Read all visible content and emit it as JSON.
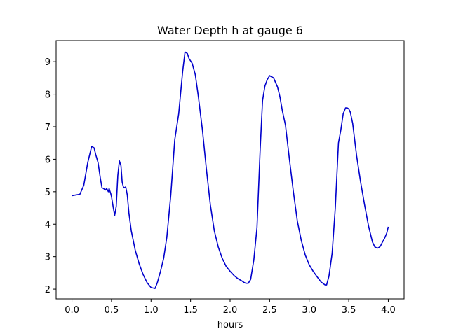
{
  "chart_data": {
    "type": "line",
    "title": "Water Depth h at gauge 6",
    "xlabel": "hours",
    "ylabel": "",
    "xlim": [
      -0.2,
      4.2
    ],
    "ylim": [
      1.7,
      9.65
    ],
    "xticks": [
      0.0,
      0.5,
      1.0,
      1.5,
      2.0,
      2.5,
      3.0,
      3.5,
      4.0
    ],
    "xtick_labels": [
      "0.0",
      "0.5",
      "1.0",
      "1.5",
      "2.0",
      "2.5",
      "3.0",
      "3.5",
      "4.0"
    ],
    "yticks": [
      2,
      3,
      4,
      5,
      6,
      7,
      8,
      9
    ],
    "ytick_labels": [
      "2",
      "3",
      "4",
      "5",
      "6",
      "7",
      "8",
      "9"
    ],
    "grid": false,
    "series": [
      {
        "color": "#0000cc",
        "x": [
          0.0,
          0.05,
          0.1,
          0.15,
          0.2,
          0.25,
          0.28,
          0.3,
          0.33,
          0.36,
          0.38,
          0.4,
          0.42,
          0.44,
          0.46,
          0.47,
          0.48,
          0.49,
          0.5,
          0.52,
          0.54,
          0.56,
          0.58,
          0.6,
          0.62,
          0.635,
          0.65,
          0.66,
          0.68,
          0.7,
          0.72,
          0.75,
          0.8,
          0.85,
          0.9,
          0.95,
          1.0,
          1.05,
          1.08,
          1.12,
          1.16,
          1.2,
          1.25,
          1.3,
          1.35,
          1.4,
          1.43,
          1.46,
          1.48,
          1.52,
          1.56,
          1.6,
          1.65,
          1.7,
          1.75,
          1.8,
          1.85,
          1.9,
          1.95,
          2.0,
          2.05,
          2.1,
          2.15,
          2.18,
          2.2,
          2.23,
          2.26,
          2.3,
          2.34,
          2.38,
          2.41,
          2.44,
          2.47,
          2.5,
          2.55,
          2.6,
          2.63,
          2.66,
          2.7,
          2.75,
          2.8,
          2.85,
          2.9,
          2.95,
          3.0,
          3.05,
          3.1,
          3.15,
          3.2,
          3.22,
          3.25,
          3.29,
          3.33,
          3.37,
          3.4,
          3.43,
          3.46,
          3.48,
          3.5,
          3.52,
          3.55,
          3.6,
          3.65,
          3.7,
          3.75,
          3.8,
          3.83,
          3.86,
          3.88,
          3.9,
          3.92,
          3.95,
          3.98,
          4.0
        ],
        "y": [
          4.88,
          4.9,
          4.92,
          5.2,
          5.9,
          6.4,
          6.35,
          6.15,
          5.9,
          5.4,
          5.12,
          5.1,
          5.05,
          5.1,
          5.0,
          5.1,
          5.02,
          4.95,
          4.85,
          4.55,
          4.27,
          4.55,
          5.5,
          5.95,
          5.8,
          5.3,
          5.15,
          5.12,
          5.15,
          4.9,
          4.35,
          3.8,
          3.2,
          2.78,
          2.45,
          2.2,
          2.05,
          2.02,
          2.2,
          2.55,
          2.95,
          3.6,
          4.9,
          6.6,
          7.4,
          8.7,
          9.3,
          9.25,
          9.1,
          8.95,
          8.6,
          7.9,
          6.9,
          5.7,
          4.6,
          3.8,
          3.3,
          2.95,
          2.7,
          2.55,
          2.42,
          2.32,
          2.25,
          2.2,
          2.18,
          2.18,
          2.3,
          2.9,
          3.9,
          6.3,
          7.8,
          8.25,
          8.45,
          8.57,
          8.5,
          8.22,
          7.92,
          7.5,
          7.05,
          6.0,
          5.0,
          4.1,
          3.5,
          3.05,
          2.75,
          2.55,
          2.38,
          2.22,
          2.13,
          2.13,
          2.4,
          3.1,
          4.5,
          6.5,
          6.9,
          7.4,
          7.58,
          7.58,
          7.55,
          7.45,
          7.1,
          6.1,
          5.3,
          4.6,
          3.95,
          3.45,
          3.3,
          3.26,
          3.28,
          3.32,
          3.42,
          3.55,
          3.72,
          3.92
        ]
      }
    ]
  }
}
